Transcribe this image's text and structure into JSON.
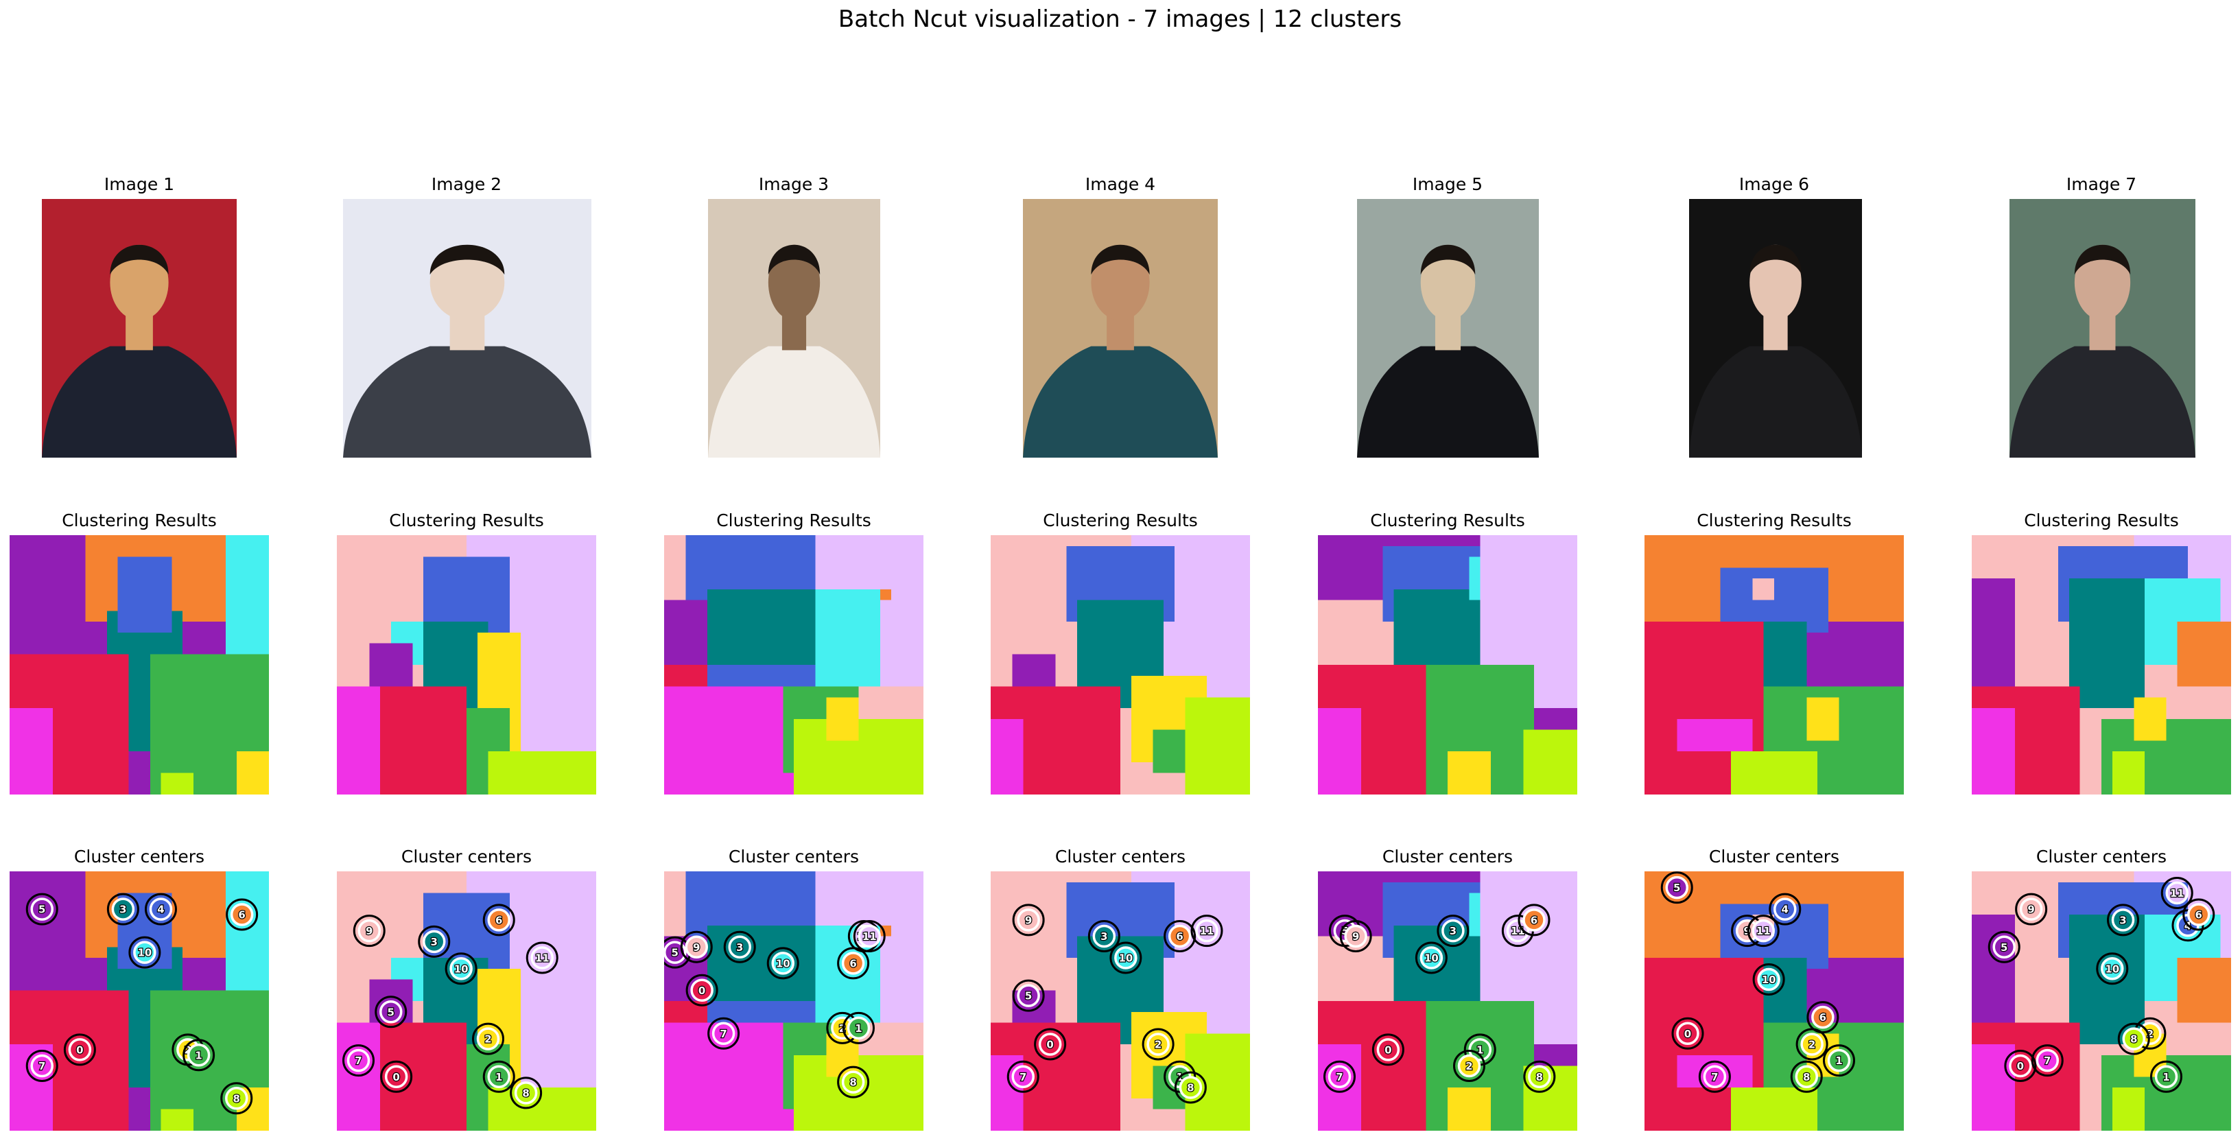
{
  "suptitle": "Batch Ncut visualization - 7 images | 12 clusters",
  "row_titles": {
    "images": "Image",
    "clustering": "Clustering Results",
    "centers": "Cluster centers"
  },
  "image_labels": [
    "Image 1",
    "Image 2",
    "Image 3",
    "Image 4",
    "Image 5",
    "Image 6",
    "Image 7"
  ],
  "cluster_colors": {
    "0": "#e6194b",
    "1": "#3cb44b",
    "2": "#ffe119",
    "3": "#008080",
    "4": "#4363d8",
    "5": "#911eb4",
    "6": "#f58231",
    "7": "#f032e6",
    "8": "#bcf60c",
    "9": "#fabebe",
    "10": "#46f0f0",
    "11": "#e6beff"
  },
  "chart_data": {
    "type": "heatmap",
    "grid_size": [
      24,
      24
    ],
    "n_clusters": 12,
    "n_images": 7,
    "images": [
      {
        "label": "Image 1",
        "background": "#b3202e",
        "figure": "#1d2230",
        "accent": "#d9a36a",
        "regions": [
          [
            5,
            0,
            0,
            10,
            12
          ],
          [
            6,
            7,
            0,
            24,
            8
          ],
          [
            10,
            20,
            0,
            24,
            12
          ],
          [
            3,
            9,
            7,
            16,
            20
          ],
          [
            4,
            10,
            2,
            15,
            9
          ],
          [
            0,
            0,
            11,
            11,
            24
          ],
          [
            7,
            0,
            16,
            4,
            24
          ],
          [
            1,
            13,
            11,
            24,
            24
          ],
          [
            8,
            14,
            22,
            17,
            24
          ],
          [
            2,
            21,
            20,
            24,
            24
          ]
        ],
        "centers": [
          [
            5,
            3,
            3.5
          ],
          [
            3,
            10.5,
            3.5
          ],
          [
            4,
            14,
            3.5
          ],
          [
            6,
            21.5,
            4
          ],
          [
            10,
            12.5,
            7.5
          ],
          [
            0,
            6.5,
            16.5
          ],
          [
            7,
            3,
            18
          ],
          [
            2,
            16.5,
            16.5
          ],
          [
            1,
            17.5,
            17
          ],
          [
            8,
            21,
            21
          ]
        ]
      },
      {
        "label": "Image 2",
        "background": "#e6e8f2",
        "figure": "#3b3f48",
        "accent": "#e8d3c2",
        "regions": [
          [
            9,
            0,
            0,
            10,
            24
          ],
          [
            11,
            12,
            0,
            24,
            22
          ],
          [
            4,
            8,
            2,
            16,
            10
          ],
          [
            3,
            8,
            8,
            14,
            17
          ],
          [
            2,
            13,
            9,
            17,
            20
          ],
          [
            10,
            5,
            8,
            8,
            12
          ],
          [
            5,
            3,
            10,
            7,
            14
          ],
          [
            0,
            0,
            14,
            12,
            24
          ],
          [
            7,
            0,
            14,
            4,
            24
          ],
          [
            1,
            12,
            16,
            16,
            24
          ],
          [
            8,
            14,
            20,
            24,
            24
          ]
        ],
        "centers": [
          [
            9,
            3,
            5.5
          ],
          [
            3,
            9,
            6.5
          ],
          [
            6,
            15,
            4.5
          ],
          [
            11,
            19,
            8
          ],
          [
            10,
            11.5,
            9
          ],
          [
            5,
            5,
            13
          ],
          [
            7,
            2,
            17.5
          ],
          [
            0,
            5.5,
            19
          ],
          [
            2,
            14,
            15.5
          ],
          [
            1,
            15,
            19
          ],
          [
            8,
            17.5,
            20.5
          ]
        ]
      },
      {
        "label": "Image 3",
        "background": "#d7c9b8",
        "figure": "#f2ede7",
        "accent": "#8a6a4e",
        "regions": [
          [
            9,
            0,
            0,
            24,
            8
          ],
          [
            11,
            14,
            0,
            24,
            14
          ],
          [
            4,
            2,
            0,
            14,
            14
          ],
          [
            3,
            4,
            5,
            14,
            12
          ],
          [
            5,
            0,
            6,
            4,
            12
          ],
          [
            6,
            17,
            5,
            21,
            6
          ],
          [
            10,
            14,
            5,
            20,
            14
          ],
          [
            7,
            0,
            14,
            12,
            24
          ],
          [
            0,
            0,
            12,
            4,
            14
          ],
          [
            1,
            11,
            14,
            18,
            22
          ],
          [
            8,
            12,
            17,
            24,
            24
          ],
          [
            2,
            15,
            15,
            18,
            19
          ]
        ],
        "centers": [
          [
            5,
            1,
            7.5
          ],
          [
            9,
            3,
            7
          ],
          [
            3,
            7,
            7
          ],
          [
            10,
            11,
            8.5
          ],
          [
            11,
            18.5,
            6
          ],
          [
            11,
            19,
            6
          ],
          [
            6,
            17.5,
            8.5
          ],
          [
            0,
            3.5,
            11
          ],
          [
            7,
            5.5,
            15
          ],
          [
            2,
            16.5,
            14.5
          ],
          [
            1,
            18,
            14.5
          ],
          [
            8,
            17.5,
            19.5
          ]
        ]
      },
      {
        "label": "Image 4",
        "background": "#c5a67e",
        "figure": "#1f4d57",
        "accent": "#c18f6a",
        "regions": [
          [
            9,
            0,
            0,
            14,
            24
          ],
          [
            11,
            13,
            0,
            24,
            16
          ],
          [
            4,
            7,
            1,
            17,
            8
          ],
          [
            3,
            8,
            6,
            16,
            16
          ],
          [
            5,
            2,
            11,
            6,
            14
          ],
          [
            0,
            0,
            14,
            12,
            24
          ],
          [
            7,
            0,
            17,
            3,
            24
          ],
          [
            2,
            13,
            13,
            20,
            21
          ],
          [
            1,
            15,
            18,
            19,
            22
          ],
          [
            8,
            18,
            15,
            24,
            24
          ]
        ],
        "centers": [
          [
            9,
            3.5,
            4.5
          ],
          [
            3,
            10.5,
            6
          ],
          [
            10,
            12.5,
            8
          ],
          [
            6,
            17.5,
            6
          ],
          [
            11,
            20,
            5.5
          ],
          [
            5,
            3.5,
            11.5
          ],
          [
            0,
            5.5,
            16
          ],
          [
            7,
            3,
            19
          ],
          [
            2,
            15.5,
            16
          ],
          [
            1,
            17.5,
            19
          ],
          [
            8,
            18.5,
            20
          ]
        ]
      },
      {
        "label": "Image 5",
        "background": "#9aa7a1",
        "figure": "#121317",
        "accent": "#d8c2a4",
        "regions": [
          [
            5,
            0,
            0,
            8,
            7
          ],
          [
            9,
            0,
            6,
            10,
            12
          ],
          [
            4,
            6,
            1,
            16,
            8
          ],
          [
            3,
            7,
            5,
            15,
            13
          ],
          [
            10,
            14,
            2,
            24,
            6
          ],
          [
            11,
            15,
            0,
            24,
            16
          ],
          [
            0,
            0,
            12,
            10,
            24
          ],
          [
            7,
            0,
            16,
            4,
            24
          ],
          [
            1,
            10,
            12,
            20,
            24
          ],
          [
            2,
            12,
            20,
            16,
            24
          ],
          [
            8,
            19,
            18,
            24,
            24
          ]
        ],
        "centers": [
          [
            5,
            2.5,
            5.5
          ],
          [
            9,
            3.5,
            6
          ],
          [
            3,
            12.5,
            5.5
          ],
          [
            10,
            10.5,
            8
          ],
          [
            11,
            18.5,
            5.5
          ],
          [
            6,
            20,
            4.5
          ],
          [
            0,
            6.5,
            16.5
          ],
          [
            7,
            2,
            19
          ],
          [
            1,
            15,
            16.5
          ],
          [
            2,
            14,
            18
          ],
          [
            8,
            20.5,
            19
          ]
        ]
      },
      {
        "label": "Image 6",
        "background": "#121212",
        "figure": "#1b1b1d",
        "accent": "#e5c4b2",
        "regions": [
          [
            5,
            0,
            0,
            3,
            3
          ],
          [
            6,
            0,
            0,
            24,
            8
          ],
          [
            4,
            7,
            3,
            17,
            9
          ],
          [
            3,
            8,
            8,
            15,
            16
          ],
          [
            9,
            10,
            4,
            12,
            6
          ],
          [
            0,
            0,
            8,
            11,
            24
          ],
          [
            7,
            3,
            17,
            10,
            20
          ],
          [
            1,
            11,
            14,
            24,
            24
          ],
          [
            2,
            15,
            15,
            18,
            19
          ],
          [
            8,
            8,
            20,
            16,
            24
          ]
        ],
        "centers": [
          [
            5,
            3,
            1.5
          ],
          [
            4,
            13,
            3.5
          ],
          [
            9,
            9.5,
            5.5
          ],
          [
            11,
            11,
            5.5
          ],
          [
            10,
            11.5,
            10
          ],
          [
            0,
            4,
            15
          ],
          [
            7,
            6.5,
            19
          ],
          [
            6,
            16.5,
            13.5
          ],
          [
            2,
            15.5,
            16
          ],
          [
            1,
            18,
            17.5
          ],
          [
            8,
            15,
            19
          ]
        ]
      },
      {
        "label": "Image 7",
        "background": "#5f7a6a",
        "figure": "#25262c",
        "accent": "#cfa892",
        "regions": [
          [
            9,
            0,
            0,
            10,
            9
          ],
          [
            5,
            0,
            4,
            4,
            14
          ],
          [
            11,
            15,
            0,
            24,
            8
          ],
          [
            4,
            8,
            1,
            20,
            8
          ],
          [
            3,
            9,
            4,
            16,
            16
          ],
          [
            10,
            16,
            4,
            23,
            12
          ],
          [
            6,
            19,
            8,
            24,
            14
          ],
          [
            0,
            0,
            14,
            10,
            24
          ],
          [
            7,
            0,
            16,
            4,
            24
          ],
          [
            1,
            12,
            17,
            24,
            24
          ],
          [
            2,
            15,
            15,
            18,
            19
          ],
          [
            8,
            13,
            20,
            16,
            24
          ]
        ],
        "centers": [
          [
            9,
            5.5,
            3.5
          ],
          [
            5,
            3,
            7
          ],
          [
            3,
            14,
            4.5
          ],
          [
            11,
            19,
            2
          ],
          [
            4,
            20,
            5
          ],
          [
            6,
            21,
            4
          ],
          [
            10,
            13,
            9
          ],
          [
            0,
            4.5,
            18
          ],
          [
            7,
            7,
            17.5
          ],
          [
            2,
            16.5,
            15
          ],
          [
            8,
            15,
            15.5
          ],
          [
            1,
            18,
            19
          ]
        ]
      }
    ]
  }
}
